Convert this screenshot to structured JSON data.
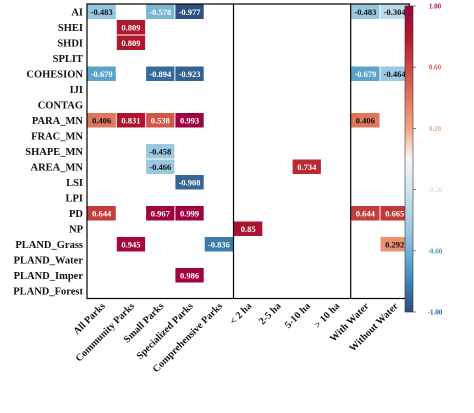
{
  "chart_data": {
    "type": "heatmap",
    "rows": [
      "AI",
      "SHEI",
      "SHDI",
      "SPLIT",
      "COHESION",
      "IJI",
      "CONTAG",
      "PARA_MN",
      "FRAC_MN",
      "SHAPE_MN",
      "AREA_MN",
      "LSI",
      "LPI",
      "PD",
      "NP",
      "PLAND_Grass",
      "PLAND_Water",
      "PLAND_Imper",
      "PLAND_Forest"
    ],
    "columns": [
      "All Parks",
      "Community Parks",
      "Small Parks",
      "Specialized Parks",
      "Comprehensive Parks",
      "< 2 ha",
      "2-5 ha",
      "5-10 ha",
      "> 10 ha",
      "With Water",
      "Without Water"
    ],
    "column_groups": [
      [
        0,
        4
      ],
      [
        5,
        8
      ],
      [
        9,
        10
      ]
    ],
    "cells": [
      {
        "row": "AI",
        "col": "All Parks",
        "value": "-0.483"
      },
      {
        "row": "AI",
        "col": "Small Parks",
        "value": "-0.578"
      },
      {
        "row": "AI",
        "col": "Specialized Parks",
        "value": "-0.977"
      },
      {
        "row": "AI",
        "col": "With Water",
        "value": "-0.483"
      },
      {
        "row": "AI",
        "col": "Without Water",
        "value": "-0.304"
      },
      {
        "row": "SHEI",
        "col": "Community Parks",
        "value": "0.809"
      },
      {
        "row": "SHDI",
        "col": "Community Parks",
        "value": "0.809"
      },
      {
        "row": "COHESION",
        "col": "All Parks",
        "value": "-0.679"
      },
      {
        "row": "COHESION",
        "col": "Small Parks",
        "value": "-0.894"
      },
      {
        "row": "COHESION",
        "col": "Specialized Parks",
        "value": "-0.923"
      },
      {
        "row": "COHESION",
        "col": "With Water",
        "value": "-0.679"
      },
      {
        "row": "COHESION",
        "col": "Without Water",
        "value": "-0.464"
      },
      {
        "row": "PARA_MN",
        "col": "All Parks",
        "value": "0.406"
      },
      {
        "row": "PARA_MN",
        "col": "Community Parks",
        "value": "0.831"
      },
      {
        "row": "PARA_MN",
        "col": "Small Parks",
        "value": "0.538"
      },
      {
        "row": "PARA_MN",
        "col": "Specialized Parks",
        "value": "0.993"
      },
      {
        "row": "PARA_MN",
        "col": "With Water",
        "value": "0.406"
      },
      {
        "row": "SHAPE_MN",
        "col": "Small Parks",
        "value": "-0.458"
      },
      {
        "row": "AREA_MN",
        "col": "Small Parks",
        "value": "-0.466"
      },
      {
        "row": "AREA_MN",
        "col": "5-10 ha",
        "value": "0.734"
      },
      {
        "row": "LSI",
        "col": "Specialized Parks",
        "value": "-0.908"
      },
      {
        "row": "PD",
        "col": "All Parks",
        "value": "0.644"
      },
      {
        "row": "PD",
        "col": "Small Parks",
        "value": "0.967"
      },
      {
        "row": "PD",
        "col": "Specialized Parks",
        "value": "0.999"
      },
      {
        "row": "PD",
        "col": "With Water",
        "value": "0.644"
      },
      {
        "row": "PD",
        "col": "Without Water",
        "value": "0.665"
      },
      {
        "row": "NP",
        "col": "< 2 ha",
        "value": "0.85"
      },
      {
        "row": "PLAND_Grass",
        "col": "Community Parks",
        "value": "0.945"
      },
      {
        "row": "PLAND_Grass",
        "col": "Comprehensive Parks",
        "value": "-0.836"
      },
      {
        "row": "PLAND_Grass",
        "col": "Without Water",
        "value": "0.292"
      },
      {
        "row": "PLAND_Imper",
        "col": "Specialized Parks",
        "value": "0.986"
      }
    ],
    "colorbar": {
      "range": [
        -1,
        1
      ],
      "ticks": [
        "1.00",
        "0.60",
        "0.20",
        "-0.20",
        "-0.60",
        "-1.00"
      ],
      "tick_values": [
        1,
        0.6,
        0.2,
        -0.2,
        -0.6,
        -1
      ],
      "tick_colors": [
        "#b2182b",
        "#d6604d",
        "#f4a582",
        "#d1e5f0",
        "#4393c3",
        "#2166ac"
      ],
      "placement": "right"
    },
    "grid": false
  }
}
